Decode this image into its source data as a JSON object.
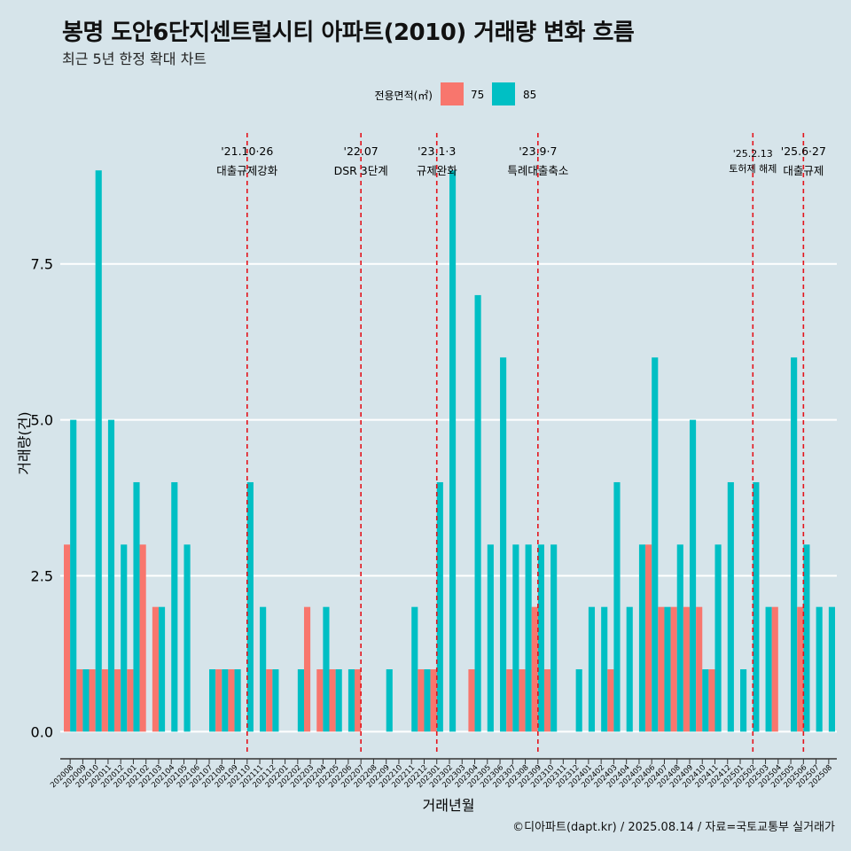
{
  "title": "봉명 도안6단지센트럴시티 아파트(2010) 거래량 변화 흐름",
  "subtitle": "최근 5년 한정 확대 차트",
  "caption": "©디아파트(dapt.kr) / 2025.08.14 / 자료=국토교통부 실거래가",
  "colors": {
    "s75": "#f8766d",
    "s85": "#00bfc4",
    "vline": "#e4131b",
    "grid": "#ffffff",
    "bg": "#d6e4ea"
  },
  "chart_data": {
    "type": "bar",
    "title": "봉명 도안6단지센트럴시티 아파트(2010) 거래량 변화 흐름",
    "xlabel": "거래년월",
    "ylabel": "거래량(건)",
    "ylim": [
      -0.35,
      9.6
    ],
    "yticks": [
      0.0,
      2.5,
      5.0,
      7.5
    ],
    "ytick_labels": [
      "0.0",
      "2.5",
      "5.0",
      "7.5"
    ],
    "legend": {
      "title": "전용면적(㎡)",
      "position": "top",
      "entries": [
        "75",
        "85"
      ]
    },
    "categories": [
      "202008",
      "202009",
      "202010",
      "202011",
      "202012",
      "202101",
      "202102",
      "202103",
      "202104",
      "202105",
      "202106",
      "202107",
      "202108",
      "202109",
      "202110",
      "202111",
      "202112",
      "202201",
      "202202",
      "202203",
      "202204",
      "202205",
      "202206",
      "202207",
      "202208",
      "202209",
      "202210",
      "202211",
      "202212",
      "202301",
      "202302",
      "202303",
      "202304",
      "202305",
      "202306",
      "202307",
      "202308",
      "202309",
      "202310",
      "202311",
      "202312",
      "202401",
      "202402",
      "202403",
      "202404",
      "202405",
      "202406",
      "202407",
      "202408",
      "202409",
      "202410",
      "202411",
      "202412",
      "202501",
      "202502",
      "202503",
      "202504",
      "202505",
      "202506",
      "202507",
      "202508"
    ],
    "series": [
      {
        "name": "75",
        "values": [
          3,
          1,
          1,
          1,
          1,
          1,
          3,
          2,
          0,
          0,
          0,
          0,
          1,
          1,
          0,
          0,
          1,
          0,
          0,
          2,
          1,
          1,
          0,
          1,
          0,
          0,
          0,
          0,
          1,
          1,
          0,
          0,
          1,
          0,
          0,
          1,
          1,
          2,
          1,
          0,
          0,
          0,
          0,
          1,
          0,
          0,
          3,
          2,
          2,
          2,
          2,
          1,
          0,
          0,
          0,
          0,
          2,
          0,
          2,
          0,
          0
        ]
      },
      {
        "name": "85",
        "values": [
          5,
          1,
          9,
          5,
          3,
          4,
          0,
          2,
          4,
          3,
          0,
          1,
          1,
          1,
          4,
          2,
          1,
          0,
          1,
          0,
          2,
          1,
          1,
          0,
          0,
          1,
          0,
          2,
          1,
          4,
          9,
          0,
          7,
          3,
          6,
          3,
          3,
          3,
          3,
          0,
          1,
          2,
          2,
          4,
          2,
          3,
          6,
          2,
          3,
          5,
          1,
          3,
          4,
          1,
          4,
          2,
          0,
          6,
          3,
          2,
          2
        ]
      }
    ],
    "annotations": [
      {
        "x": "202110",
        "line1": "'21.10·26",
        "line2": "대출규제강화"
      },
      {
        "x": "202207",
        "line1": "'22.07",
        "line2": "DSR 3단계"
      },
      {
        "x": "202301",
        "line1": "'23.1·3",
        "line2": "규제완화"
      },
      {
        "x": "202309",
        "line1": "'23.9·7",
        "line2": "특례대출축소"
      },
      {
        "x": "202502",
        "line1": "'25.2.13",
        "line2": "토허제 해제"
      },
      {
        "x": "202506",
        "line1": "'25.6·27",
        "line2": "대출규제"
      }
    ]
  }
}
